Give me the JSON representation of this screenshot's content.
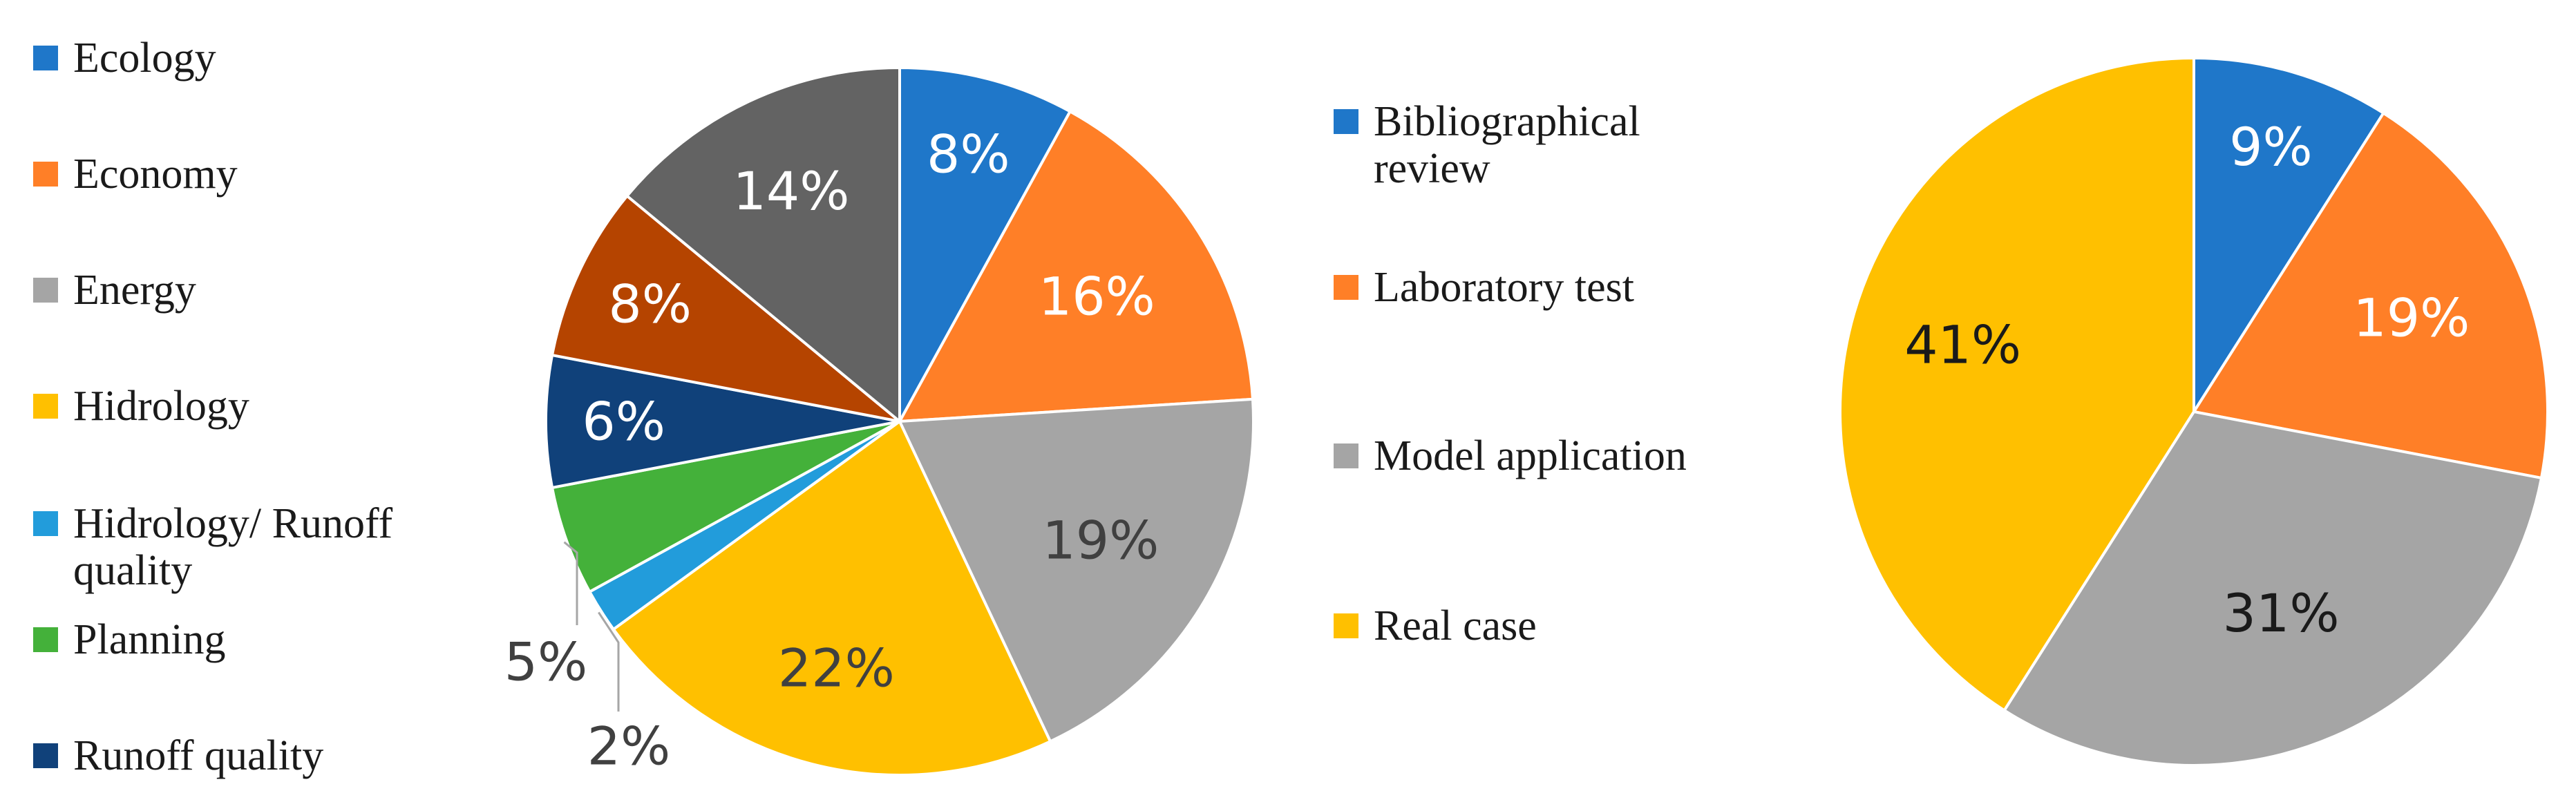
{
  "chart_data": [
    {
      "type": "pie",
      "legend_position": "left",
      "slices": [
        {
          "label": "Ecology",
          "value": 8,
          "display": "8%",
          "color": "#1f77c9"
        },
        {
          "label": "Economy",
          "value": 16,
          "display": "16%",
          "color": "#ff7f27"
        },
        {
          "label": "Energy",
          "value": 19,
          "display": "19%",
          "color": "#a5a5a5"
        },
        {
          "label": "Hidrology",
          "value": 22,
          "display": "22%",
          "color": "#ffc000"
        },
        {
          "label": "Hidrology/ Runoff quality",
          "value": 2,
          "display": "2%",
          "color": "#229cdb"
        },
        {
          "label": "Planning",
          "value": 5,
          "display": "5%",
          "color": "#44b13a"
        },
        {
          "label": "Runoff quality",
          "value": 6,
          "display": "6%",
          "color": "#10417a"
        },
        {
          "label": "",
          "value": 8,
          "display": "8%",
          "color": "#b54400"
        },
        {
          "label": "",
          "value": 14,
          "display": "14%",
          "color": "#636363"
        }
      ]
    },
    {
      "type": "pie",
      "legend_position": "left",
      "slices": [
        {
          "label": "Bibliographical review",
          "value": 9,
          "display": "9%",
          "color": "#1f77c9"
        },
        {
          "label": "Laboratory test",
          "value": 19,
          "display": "19%",
          "color": "#ff7f27"
        },
        {
          "label": "Model application",
          "value": 31,
          "display": "31%",
          "color": "#a5a5a5"
        },
        {
          "label": "Real case",
          "value": 41,
          "display": "41%",
          "color": "#ffc000"
        }
      ]
    }
  ],
  "legend_left": [
    {
      "text": "Ecology",
      "color": "#1f77c9"
    },
    {
      "text": "Economy",
      "color": "#ff7f27"
    },
    {
      "text": "Energy",
      "color": "#a5a5a5"
    },
    {
      "text": "Hidrology",
      "color": "#ffc000"
    },
    {
      "text": "Hidrology/ Runoff",
      "text2": "quality",
      "color": "#229cdb"
    },
    {
      "text": "Planning",
      "color": "#44b13a"
    },
    {
      "text": "Runoff quality",
      "color": "#10417a"
    }
  ],
  "legend_right": [
    {
      "text": "Bibliographical",
      "text2": "review",
      "color": "#1f77c9"
    },
    {
      "text": "Laboratory test",
      "color": "#ff7f27"
    },
    {
      "text": "Model application",
      "color": "#a5a5a5"
    },
    {
      "text": "Real case",
      "color": "#ffc000"
    }
  ]
}
